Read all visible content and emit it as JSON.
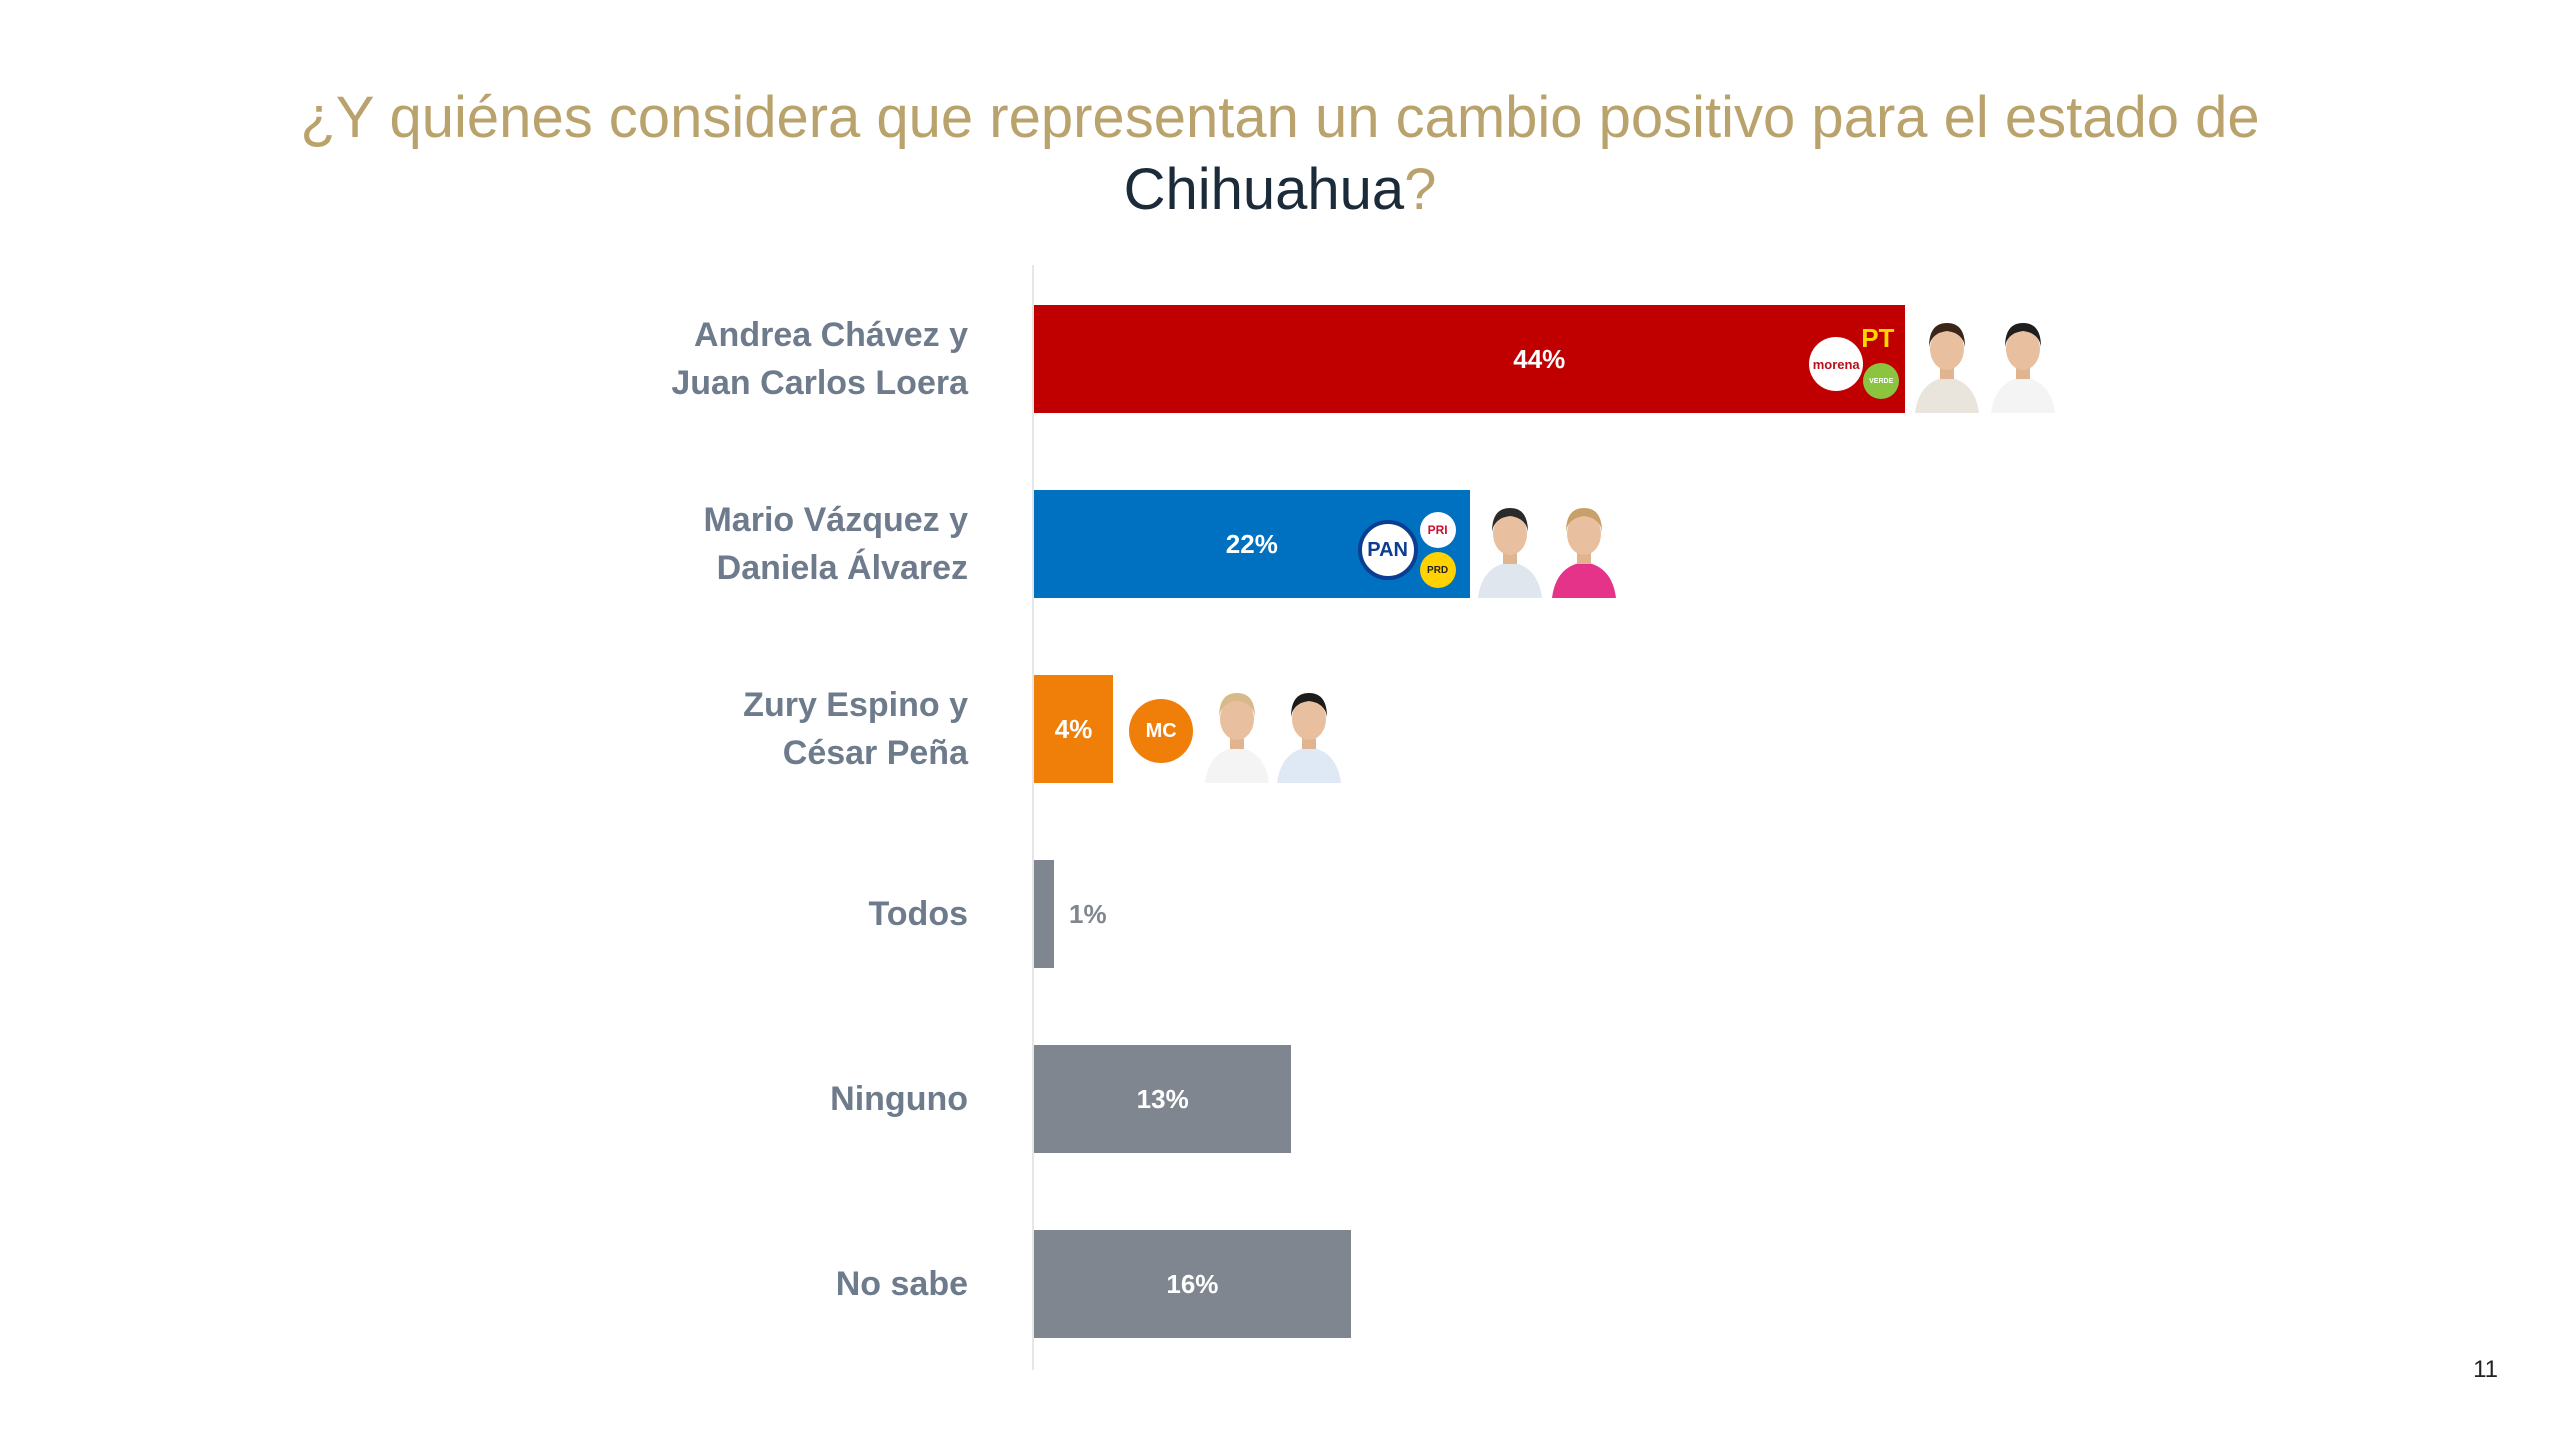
{
  "title": {
    "main": "¿Y quiénes considera que representan un cambio positivo para el estado de",
    "highlight": "Chihuahua",
    "end": "?"
  },
  "page_number": "11",
  "colors": {
    "morena": "#c00000",
    "pan": "#0070c0",
    "mc": "#f07f09",
    "gray": "#7f868f",
    "label": "#6e7b8c",
    "title": "#b9a26b"
  },
  "chart_data": {
    "type": "bar",
    "orientation": "horizontal",
    "categories": [
      [
        "Andrea Chávez y",
        "Juan Carlos Loera"
      ],
      [
        "Mario Vázquez y",
        "Daniela Álvarez"
      ],
      [
        "Zury Espino y",
        "César Peña"
      ],
      [
        "Todos"
      ],
      [
        "Ninguno"
      ],
      [
        "No sabe"
      ]
    ],
    "values": [
      44,
      22,
      4,
      1,
      13,
      16
    ],
    "value_labels": [
      "44%",
      "22%",
      "4%",
      "1%",
      "13%",
      "16%"
    ],
    "bar_colors": [
      "#c00000",
      "#0070c0",
      "#f07f09",
      "#7f868f",
      "#7f868f",
      "#7f868f"
    ],
    "xlim": [
      0,
      100
    ],
    "grid": false,
    "party_logos": [
      [
        "morena",
        "PT",
        "VERDE"
      ],
      [
        "PAN",
        "PRI",
        "PRD"
      ],
      [
        "MOVIMIENTO CIUDADANO"
      ],
      [],
      [],
      []
    ]
  }
}
